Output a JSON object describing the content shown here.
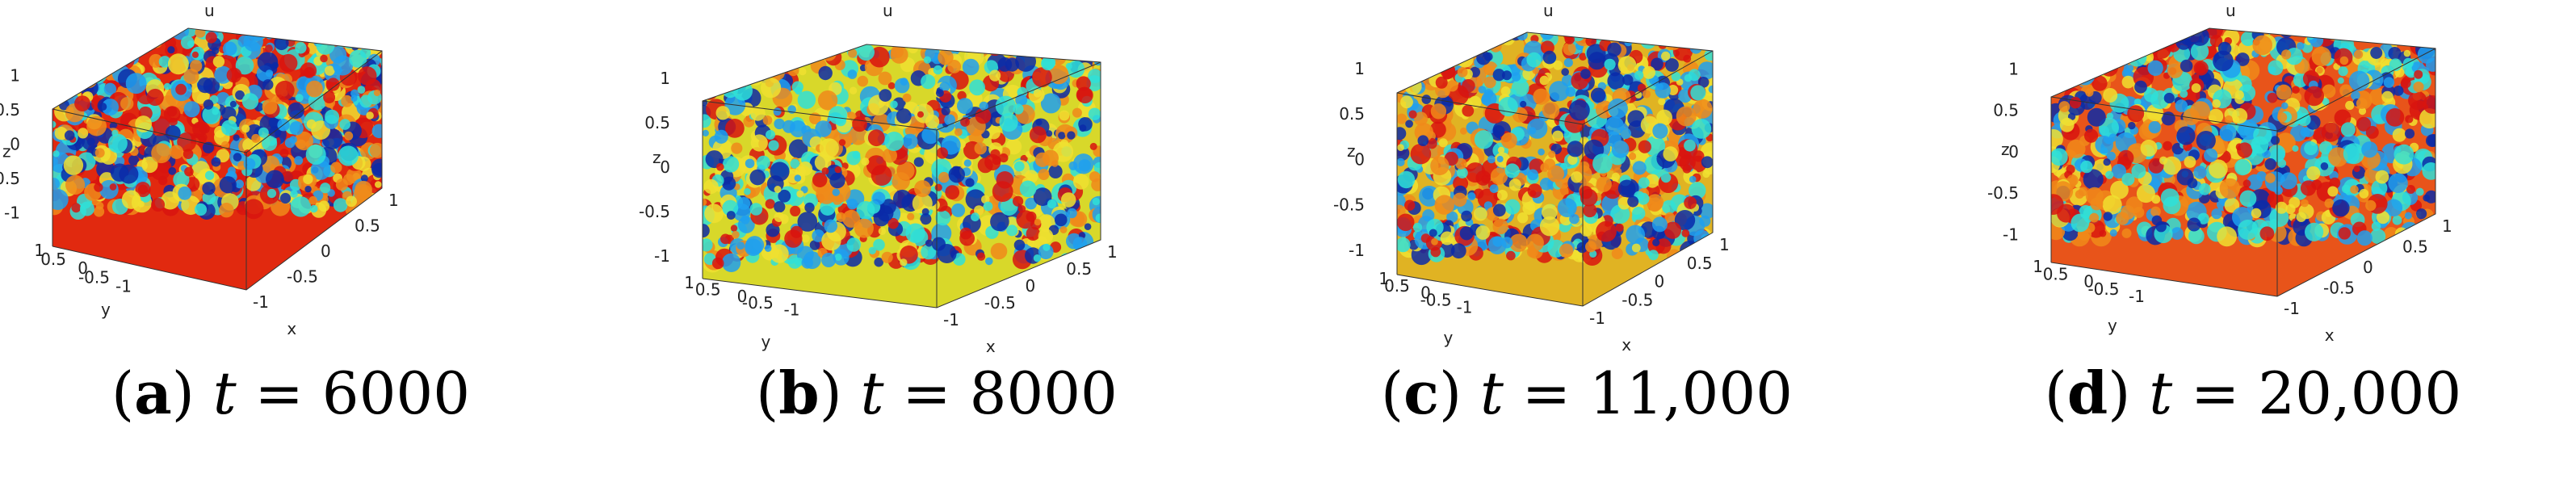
{
  "panels": [
    {
      "letter": "a",
      "variable": "t",
      "equals": "=",
      "value": "6000",
      "plot_label": "u",
      "z_label": "z",
      "x_label": "x",
      "y_label": "y",
      "z_ticks": [
        "1",
        "0.5",
        "0",
        "-0.5",
        "-1"
      ],
      "y_ticks": [
        "1",
        "0.5",
        "0",
        "-0.5",
        "-1"
      ],
      "x_ticks": [
        "-1",
        "-0.5",
        "0",
        "0.5",
        "1"
      ],
      "dominant_color": "#e1290f"
    },
    {
      "letter": "b",
      "variable": "t",
      "equals": "=",
      "value": "8000",
      "plot_label": "u",
      "z_label": "z",
      "x_label": "x",
      "y_label": "y",
      "z_ticks": [
        "1",
        "0.5",
        "0",
        "-0.5",
        "-1"
      ],
      "y_ticks": [
        "1",
        "0.5",
        "0",
        "-0.5",
        "-1"
      ],
      "x_ticks": [
        "-1",
        "-0.5",
        "0",
        "0.5",
        "1"
      ],
      "dominant_color": "#d8d82a"
    },
    {
      "letter": "c",
      "variable": "t",
      "equals": "=",
      "value": "11,000",
      "plot_label": "u",
      "z_label": "z",
      "x_label": "x",
      "y_label": "y",
      "z_ticks": [
        "1",
        "0.5",
        "0",
        "-0.5",
        "-1"
      ],
      "y_ticks": [
        "1",
        "0.5",
        "0",
        "-0.5",
        "-1"
      ],
      "x_ticks": [
        "-1",
        "-0.5",
        "0",
        "0.5",
        "1"
      ],
      "dominant_color": "#e0b323"
    },
    {
      "letter": "d",
      "variable": "t",
      "equals": "=",
      "value": "20,000",
      "plot_label": "u",
      "z_label": "z",
      "x_label": "x",
      "y_label": "y",
      "z_ticks": [
        "1",
        "0.5",
        "0",
        "-0.5",
        "-1"
      ],
      "y_ticks": [
        "1",
        "0.5",
        "0",
        "-0.5",
        "-1"
      ],
      "x_ticks": [
        "-1",
        "-0.5",
        "0",
        "0.5",
        "1"
      ],
      "dominant_color": "#e8541a"
    }
  ],
  "colormap": [
    "#0a2aa8",
    "#1fa0f0",
    "#2fe0d8",
    "#f0e030",
    "#f08a1a",
    "#d8140f"
  ]
}
